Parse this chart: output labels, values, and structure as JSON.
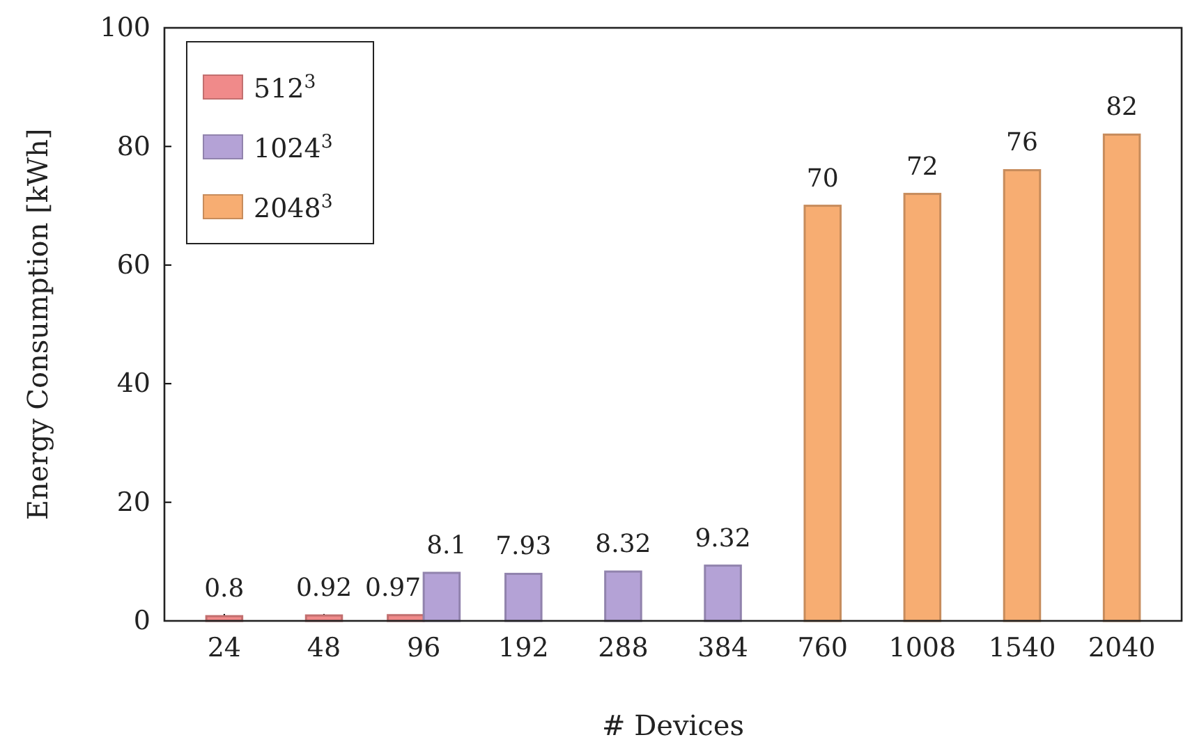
{
  "chart_data": {
    "type": "bar",
    "xlabel": "# Devices",
    "ylabel": "Energy Consumption [kWh]",
    "categories": [
      "24",
      "48",
      "96",
      "192",
      "288",
      "384",
      "760",
      "1008",
      "1540",
      "2040"
    ],
    "series": [
      {
        "name": "512$^{3}$",
        "color": "#f08a8a",
        "values": [
          0.8,
          0.92,
          0.97,
          null,
          null,
          null,
          null,
          null,
          null,
          null
        ]
      },
      {
        "name": "1024$^{3}$",
        "color": "#b4a2d6",
        "values": [
          null,
          null,
          8.1,
          7.93,
          8.32,
          9.32,
          null,
          null,
          null,
          null
        ]
      },
      {
        "name": "2048$^{3}$",
        "color": "#f7ad72",
        "values": [
          null,
          null,
          null,
          null,
          null,
          null,
          70,
          72,
          76,
          82
        ]
      }
    ],
    "ylim": [
      0,
      100
    ],
    "yticks": [
      0,
      20,
      40,
      60,
      80,
      100
    ],
    "grid": false,
    "legend": "top left",
    "data_labels": true
  }
}
